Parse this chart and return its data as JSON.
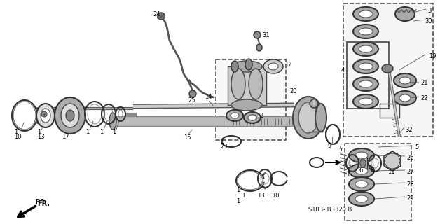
{
  "background_color": "#ffffff",
  "diagram_code": "S103- B3320 B",
  "fr_label": "FR.",
  "fig_w": 6.28,
  "fig_h": 3.2,
  "dpi": 100
}
